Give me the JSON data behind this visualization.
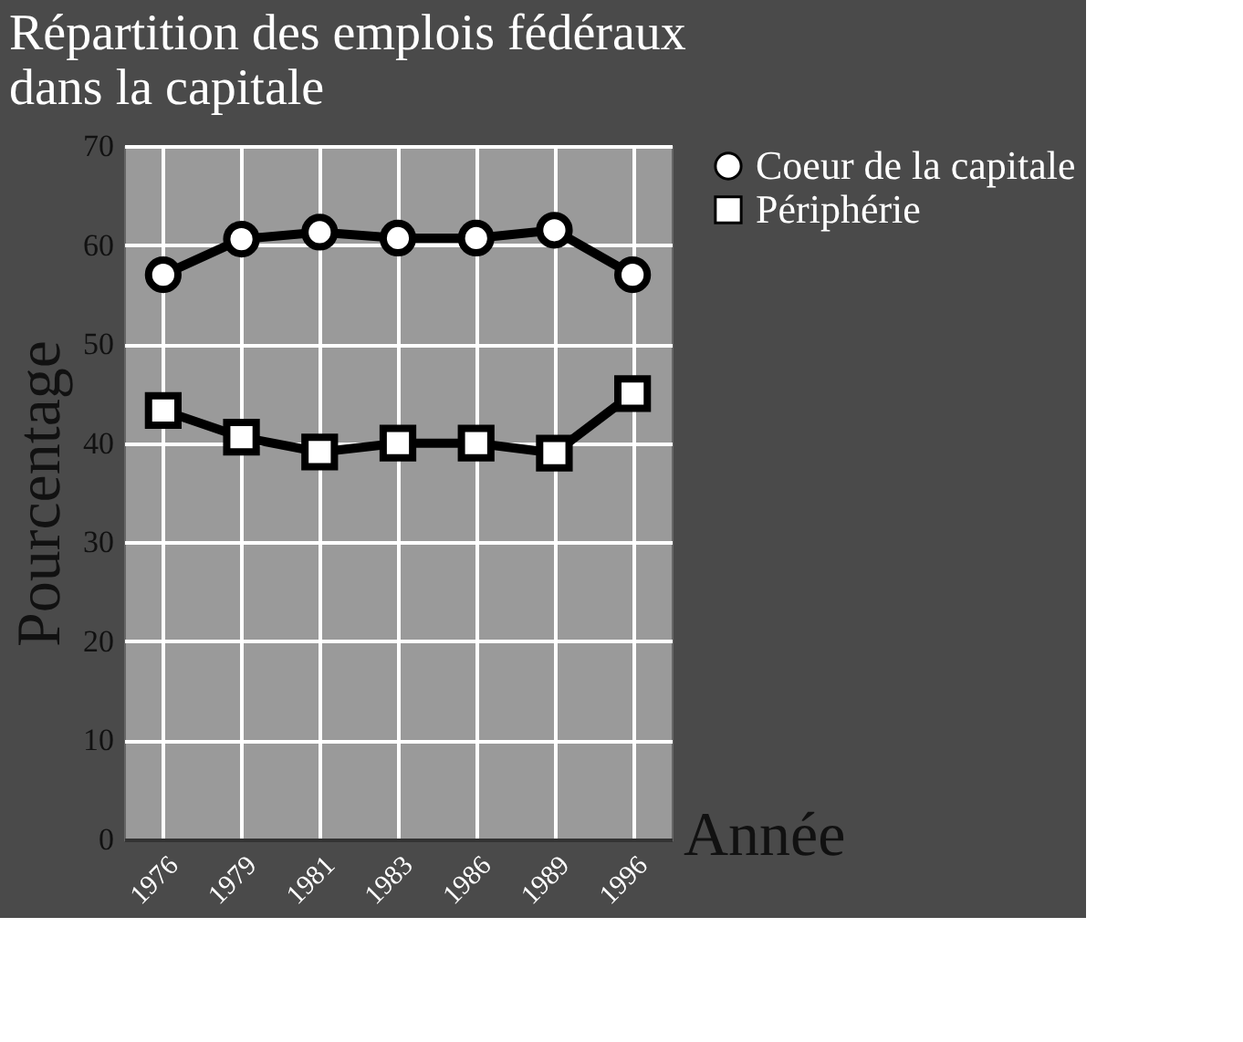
{
  "chart_data": {
    "type": "line",
    "title": [
      "Répartition des emplois fédéraux",
      "dans la capitale"
    ],
    "xlabel": "Année",
    "ylabel": "Pourcentage",
    "categories": [
      "1976",
      "1979",
      "1981",
      "1983",
      "1986",
      "1989",
      "1996"
    ],
    "series": [
      {
        "name": "Coeur de la capitale",
        "color": "#000000",
        "marker": "circle",
        "values": [
          57,
          60.6,
          61.3,
          60.7,
          60.7,
          61.5,
          57
        ]
      },
      {
        "name": "Périphérie",
        "color": "#000000",
        "marker": "square",
        "values": [
          43.3,
          40.6,
          39.1,
          40,
          40,
          39,
          45
        ]
      }
    ],
    "ylim": [
      0,
      70
    ],
    "yticks": [
      0,
      10,
      20,
      30,
      40,
      50,
      60,
      70
    ],
    "grid": true,
    "legend": "right",
    "line_style": "solid"
  }
}
